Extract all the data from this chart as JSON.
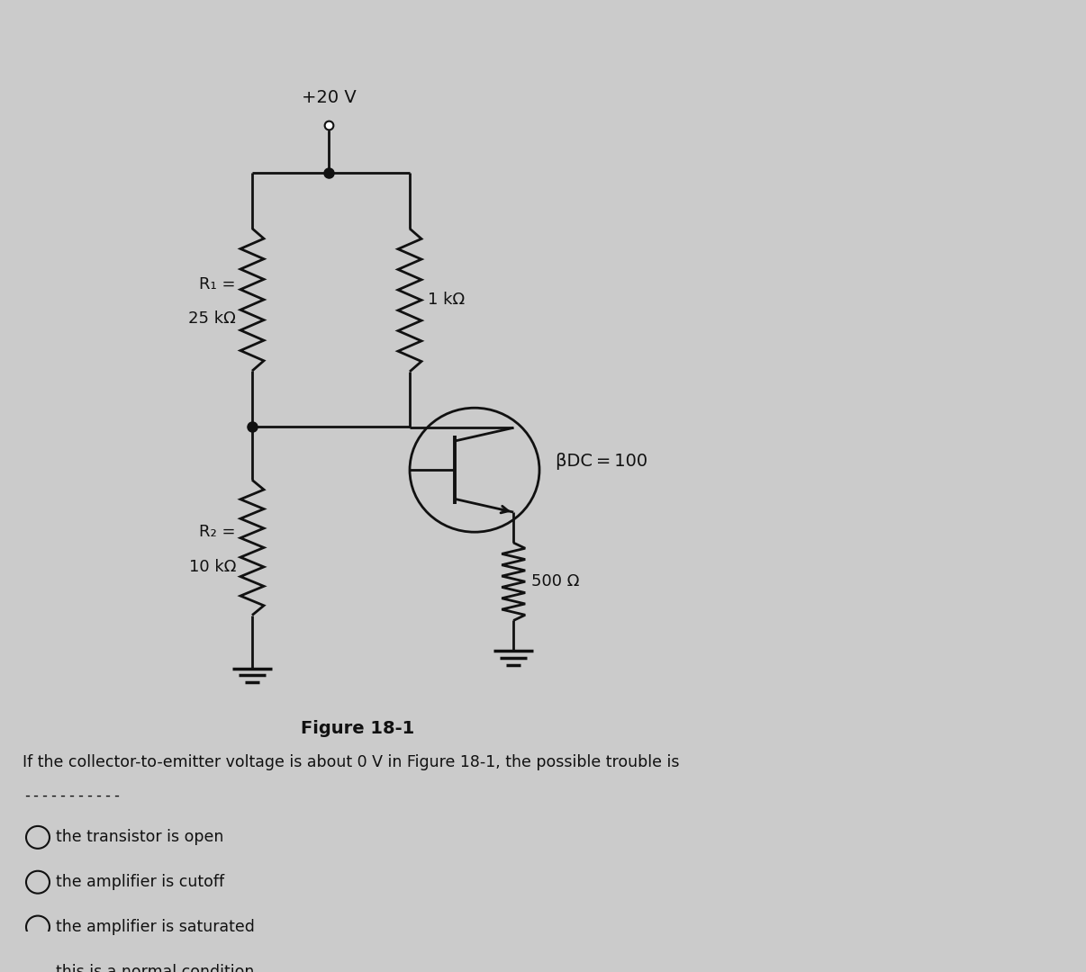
{
  "bg_color": "#cbcbcb",
  "fig_label": "Figure 18-1",
  "question_text": "If the collector-to-emitter voltage is about 0 V in Figure 18-1, the possible trouble is",
  "dashed_line": "-----------",
  "options": [
    "the transistor is open",
    "the amplifier is cutoff",
    "the amplifier is saturated",
    "this is a normal condition"
  ],
  "vcc_label": "+20 V",
  "r1_label1": "R₁ =",
  "r1_label2": "25 kΩ",
  "r2_label1": "R₂ =",
  "r2_label2": "10 kΩ",
  "rc_label": "1 kΩ",
  "re_label": "500 Ω",
  "beta_label": "βDC = 100",
  "line_color": "#111111",
  "text_color": "#111111"
}
